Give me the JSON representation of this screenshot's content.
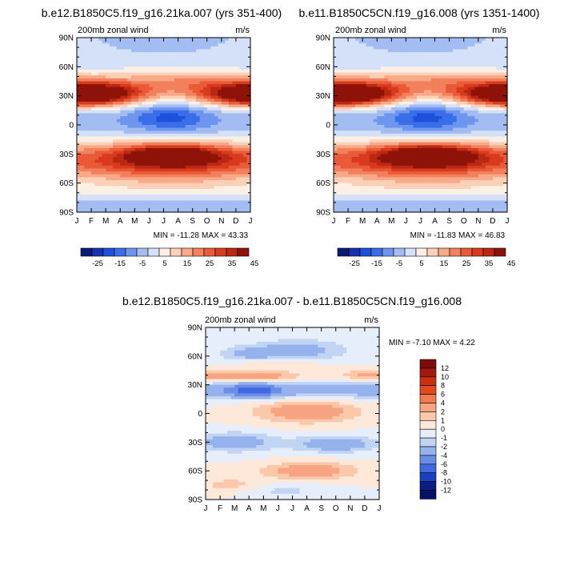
{
  "chart_data": [
    {
      "type": "heatmap",
      "id": "p1",
      "title": "b.e12.B1850C5.f19_g16.21ka.007 (yrs 351-400)",
      "left_label": "200mb zonal wind",
      "units": "m/s",
      "x_tick_labels": [
        "J",
        "F",
        "M",
        "A",
        "M",
        "J",
        "J",
        "A",
        "S",
        "O",
        "N",
        "D",
        "J"
      ],
      "y_tick_labels": [
        "90N",
        "60N",
        "30N",
        "0",
        "30S",
        "60S",
        "90S"
      ],
      "y_tick_values": [
        90,
        60,
        30,
        0,
        -30,
        -60,
        -90
      ],
      "xlim": [
        0,
        12
      ],
      "ylim": [
        -90,
        90
      ],
      "min_label": "MIN = -11.28",
      "max_label": "MAX =  43.33",
      "colorbar": {
        "orientation": "horizontal",
        "labels": [
          "-25",
          "-15",
          "-5",
          "5",
          "15",
          "25",
          "35",
          "45"
        ]
      }
    },
    {
      "type": "heatmap",
      "id": "p2",
      "title": "b.e11.B1850C5CN.f19_g16.008 (yrs 1351-1400)",
      "left_label": "200mb zonal wind",
      "units": "m/s",
      "x_tick_labels": [
        "J",
        "F",
        "M",
        "A",
        "M",
        "J",
        "J",
        "A",
        "S",
        "O",
        "N",
        "D",
        "J"
      ],
      "y_tick_labels": [
        "90N",
        "60N",
        "30N",
        "0",
        "30S",
        "60S",
        "90S"
      ],
      "y_tick_values": [
        90,
        60,
        30,
        0,
        -30,
        -60,
        -90
      ],
      "xlim": [
        0,
        12
      ],
      "ylim": [
        -90,
        90
      ],
      "min_label": "MIN = -11.83",
      "max_label": "MAX =  46.83",
      "colorbar": {
        "orientation": "horizontal",
        "labels": [
          "-25",
          "-15",
          "-5",
          "5",
          "15",
          "25",
          "35",
          "45"
        ]
      }
    },
    {
      "type": "heatmap",
      "id": "p3",
      "title": "b.e12.B1850C5.f19_g16.21ka.007 - b.e11.B1850C5CN.f19_g16.008",
      "left_label": "200mb zonal wind",
      "units": "m/s",
      "x_tick_labels": [
        "J",
        "F",
        "M",
        "A",
        "M",
        "J",
        "J",
        "A",
        "S",
        "O",
        "N",
        "D",
        "J"
      ],
      "y_tick_labels": [
        "90N",
        "60N",
        "30N",
        "0",
        "30S",
        "60S",
        "90S"
      ],
      "y_tick_values": [
        90,
        60,
        30,
        0,
        -30,
        -60,
        -90
      ],
      "xlim": [
        0,
        12
      ],
      "ylim": [
        -90,
        90
      ],
      "minmax_label": "MIN =  -7.10 MAX =   4.22",
      "colorbar": {
        "orientation": "vertical",
        "labels": [
          "12",
          "10",
          "8",
          "6",
          "4",
          "2",
          "1",
          "0",
          "-1",
          "-2",
          "-4",
          "-6",
          "-8",
          "-10",
          "-12"
        ]
      }
    }
  ],
  "colors": {
    "absolute_scale": [
      "#0b1a72",
      "#1432b0",
      "#1e50dc",
      "#3a6ee8",
      "#6f96ee",
      "#a3bdf2",
      "#d4e1f8",
      "#fcefe4",
      "#fbd0b7",
      "#f8aa88",
      "#f3805c",
      "#ea5a38",
      "#d83a1e",
      "#b82812",
      "#8e1208"
    ],
    "difference_scale": [
      "#7d0d08",
      "#a21a0e",
      "#c8300e",
      "#e04a1c",
      "#f07a4e",
      "#f8a482",
      "#fbc8aa",
      "#fde8da",
      "#e6eefb",
      "#c2d4f4",
      "#96b2ec",
      "#6a8ee6",
      "#3f68e2",
      "#1b3ec4",
      "#0a1d86"
    ]
  }
}
